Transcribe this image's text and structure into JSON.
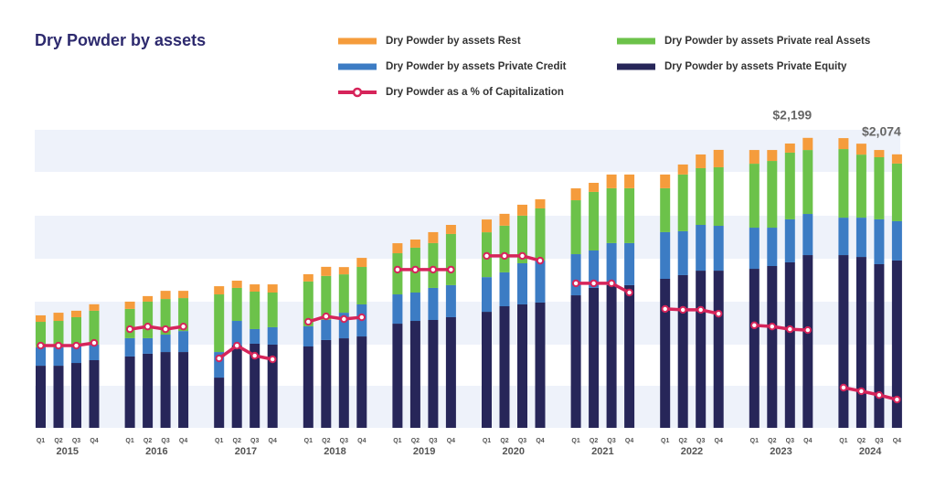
{
  "chart_data": {
    "type": "bar",
    "stacked": true,
    "title": "Dry Powder by assets",
    "categories": [
      "Q1",
      "Q2",
      "Q3",
      "Q4",
      "Q1",
      "Q2",
      "Q3",
      "Q4",
      "Q1",
      "Q2",
      "Q3",
      "Q4",
      "Q1",
      "Q2",
      "Q3",
      "Q4",
      "Q1",
      "Q2",
      "Q3",
      "Q4",
      "Q1",
      "Q2",
      "Q3",
      "Q4",
      "Q1",
      "Q2",
      "Q3",
      "Q4",
      "Q1",
      "Q2",
      "Q3",
      "Q4",
      "Q1",
      "Q2",
      "Q3",
      "Q4",
      "Q1",
      "Q2",
      "Q3",
      "Q4"
    ],
    "groups": [
      "2015",
      "2016",
      "2017",
      "2018",
      "2019",
      "2020",
      "2021",
      "2022",
      "2023",
      "2024"
    ],
    "ylim": [
      0,
      2260
    ],
    "y2lim": [
      0,
      100
    ],
    "series": [
      {
        "name": "Dry Powder by assets Private Equity",
        "color": "#272659",
        "values": [
          471,
          471,
          492,
          513,
          541,
          562,
          575,
          575,
          381,
          624,
          638,
          631,
          617,
          666,
          679,
          693,
          790,
          811,
          818,
          839,
          880,
          922,
          936,
          950,
          1005,
          1061,
          1082,
          1082,
          1130,
          1158,
          1192,
          1192,
          1206,
          1227,
          1255,
          1310,
          1310,
          1296,
          1241,
          1269
        ]
      },
      {
        "name": "Dry Powder by assets Private Credit",
        "color": "#3c7cc4",
        "values": [
          139,
          139,
          132,
          118,
          139,
          118,
          132,
          159,
          194,
          187,
          111,
          132,
          153,
          153,
          194,
          243,
          222,
          215,
          243,
          243,
          263,
          257,
          312,
          319,
          312,
          284,
          319,
          319,
          354,
          333,
          347,
          340,
          312,
          291,
          326,
          312,
          284,
          298,
          340,
          298
        ]
      },
      {
        "name": "Dry Powder by assets Private real Assets",
        "color": "#6cc24a",
        "values": [
          194,
          201,
          215,
          257,
          222,
          277,
          270,
          250,
          437,
          250,
          284,
          263,
          340,
          333,
          291,
          284,
          312,
          340,
          340,
          388,
          340,
          354,
          361,
          395,
          409,
          444,
          416,
          416,
          333,
          430,
          430,
          444,
          485,
          506,
          506,
          485,
          520,
          478,
          471,
          437
        ]
      },
      {
        "name": "Dry Powder by assets Rest",
        "color": "#f59c3c",
        "values": [
          49,
          62,
          49,
          49,
          55,
          42,
          62,
          55,
          62,
          55,
          55,
          62,
          55,
          69,
          55,
          69,
          76,
          62,
          83,
          69,
          97,
          90,
          83,
          69,
          90,
          69,
          104,
          104,
          104,
          76,
          104,
          132,
          104,
          83,
          69,
          92,
          83,
          83,
          55,
          70
        ]
      },
      {
        "name": "Dry Powder as a % of Capitalization",
        "type": "line",
        "axis": "y2",
        "color": "#d6245a",
        "values": [
          27.6,
          27.6,
          27.6,
          28.5,
          33.1,
          34.0,
          33.1,
          34.0,
          23.3,
          27.6,
          24.2,
          23.0,
          35.6,
          37.4,
          36.5,
          37.1,
          53.1,
          53.1,
          53.1,
          53.1,
          57.7,
          57.7,
          57.7,
          56.1,
          48.5,
          48.5,
          48.5,
          45.4,
          39.9,
          39.6,
          39.6,
          38.3,
          34.4,
          34.0,
          33.1,
          32.8,
          13.5,
          12.3,
          11.0,
          9.5
        ]
      }
    ],
    "annotations": [
      {
        "label": "$2,199",
        "value": 2199
      },
      {
        "label": "$2,074",
        "value": 2074
      }
    ]
  }
}
